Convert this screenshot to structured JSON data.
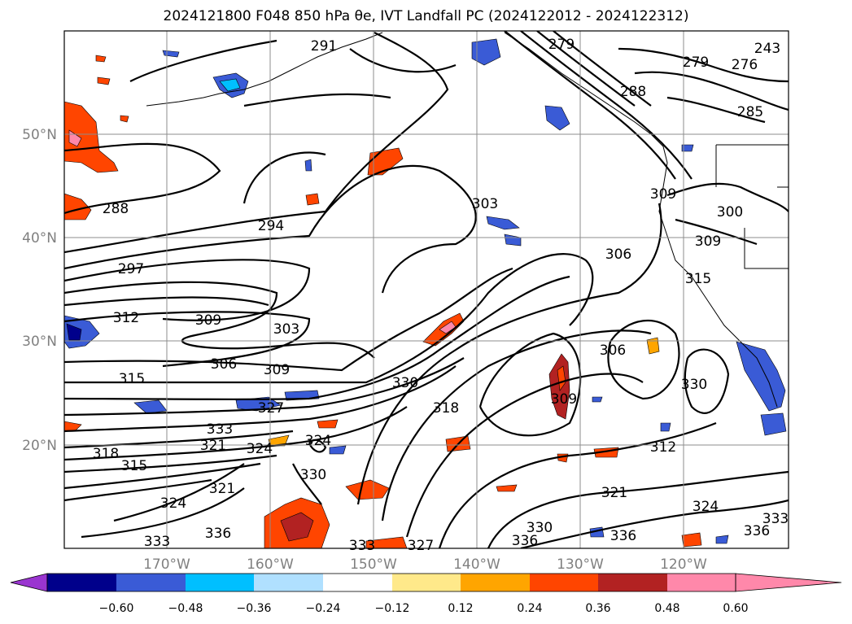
{
  "title": "2024121800 F048 850 hPa θe, IVT Landfall PC (2024122012 - 2024122312)",
  "map": {
    "lat_labels": [
      "50°N",
      "40°N",
      "30°N",
      "20°N"
    ],
    "lon_labels": [
      "170°W",
      "160°W",
      "150°W",
      "140°W",
      "130°W",
      "120°W"
    ],
    "contour_labels": [
      "291",
      "279",
      "276",
      "243",
      "279",
      "288",
      "285",
      "288",
      "294",
      "297",
      "303",
      "309",
      "300",
      "309",
      "315",
      "306",
      "312",
      "309",
      "303",
      "306",
      "309",
      "315",
      "330",
      "327",
      "318",
      "324",
      "333",
      "321",
      "324",
      "318",
      "315",
      "330",
      "321",
      "324",
      "309",
      "312",
      "321",
      "324",
      "333",
      "336",
      "330",
      "336",
      "327",
      "333",
      "306",
      "330",
      "336",
      "336",
      "333"
    ]
  },
  "colorbar": {
    "colors": [
      "#9a35d0",
      "#00008b",
      "#3a5bd6",
      "#00bfff",
      "#b0e0ff",
      "#ffffff",
      "#ffe98a",
      "#ffa500",
      "#ff4500",
      "#b22222",
      "#ff88aa"
    ],
    "ticks": [
      "−0.60",
      "−0.48",
      "−0.36",
      "−0.24",
      "−0.12",
      "0.12",
      "0.24",
      "0.36",
      "0.48",
      "0.60"
    ]
  }
}
